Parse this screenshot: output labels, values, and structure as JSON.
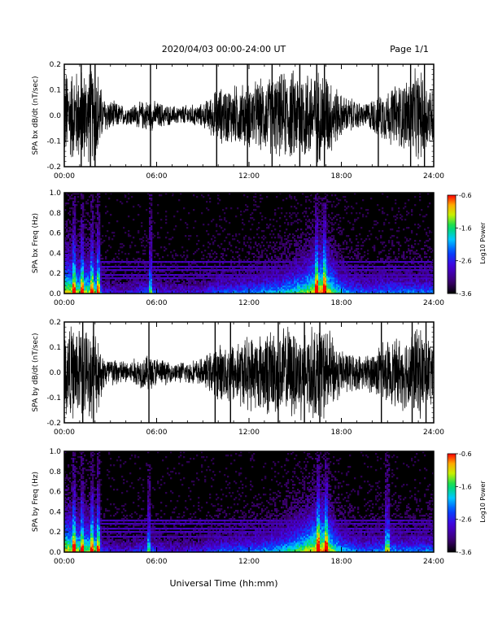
{
  "header": {
    "title": "2020/04/03  00:00-24:00 UT",
    "page": "Page 1/1"
  },
  "xlabel": "Universal Time (hh:mm)",
  "colors": {
    "line": "#000000",
    "background": "#ffffff",
    "spectrogram_background": "#000000"
  },
  "chart_data": [
    {
      "type": "line",
      "ylabel": "SPA bx dB/dt (nT/sec)",
      "x_unit": "hours UT",
      "xlim": [
        0,
        24
      ],
      "ylim": [
        -0.2,
        0.2
      ],
      "x_ticks": [
        "00:00",
        "06:00",
        "12:00",
        "18:00",
        "24:00"
      ],
      "y_ticks": [
        "0.2",
        "0.1",
        "0.0",
        "-0.1",
        "-0.2"
      ],
      "envelope": [
        {
          "x": 0.0,
          "y": 0.2
        },
        {
          "x": 1.0,
          "y": 0.2
        },
        {
          "x": 2.2,
          "y": 0.2
        },
        {
          "x": 2.5,
          "y": 0.08
        },
        {
          "x": 4.0,
          "y": 0.04
        },
        {
          "x": 5.5,
          "y": 0.07
        },
        {
          "x": 7.0,
          "y": 0.04
        },
        {
          "x": 9.0,
          "y": 0.05
        },
        {
          "x": 10.0,
          "y": 0.12
        },
        {
          "x": 12.0,
          "y": 0.14
        },
        {
          "x": 14.0,
          "y": 0.18
        },
        {
          "x": 15.0,
          "y": 0.2
        },
        {
          "x": 17.0,
          "y": 0.2
        },
        {
          "x": 18.0,
          "y": 0.09
        },
        {
          "x": 19.5,
          "y": 0.05
        },
        {
          "x": 20.5,
          "y": 0.1
        },
        {
          "x": 22.0,
          "y": 0.15
        },
        {
          "x": 23.0,
          "y": 0.2
        },
        {
          "x": 24.0,
          "y": 0.12
        }
      ],
      "spikes": [
        1.1,
        1.7,
        2.0,
        5.6,
        9.9,
        11.9,
        13.5,
        15.3,
        16.4,
        16.9,
        20.4,
        22.5,
        23.4
      ]
    },
    {
      "type": "heatmap",
      "ylabel": "SPA bx Freq (Hz)",
      "x_unit": "hours UT",
      "xlim": [
        0,
        24
      ],
      "ylim": [
        0.0,
        1.0
      ],
      "x_ticks": [
        "00:00",
        "06:00",
        "12:00",
        "18:00",
        "24:00"
      ],
      "y_ticks": [
        "1.0",
        "0.8",
        "0.6",
        "0.4",
        "0.2",
        "0.0"
      ],
      "colorbar": {
        "label": "Log10 Power",
        "range": [
          -3.6,
          -0.6
        ],
        "ticks": [
          "-0.6",
          "-1.6",
          "-2.6",
          "-3.6"
        ]
      },
      "activity": [
        {
          "x": 0.0,
          "a": 0.9
        },
        {
          "x": 1.0,
          "a": 0.8
        },
        {
          "x": 2.2,
          "a": 0.8
        },
        {
          "x": 2.5,
          "a": 0.35
        },
        {
          "x": 4.0,
          "a": 0.3
        },
        {
          "x": 5.5,
          "a": 0.45
        },
        {
          "x": 7.0,
          "a": 0.3
        },
        {
          "x": 9.0,
          "a": 0.35
        },
        {
          "x": 10.0,
          "a": 0.45
        },
        {
          "x": 12.0,
          "a": 0.5
        },
        {
          "x": 14.0,
          "a": 0.6
        },
        {
          "x": 15.5,
          "a": 0.75
        },
        {
          "x": 16.8,
          "a": 1.0
        },
        {
          "x": 18.0,
          "a": 0.6
        },
        {
          "x": 19.5,
          "a": 0.45
        },
        {
          "x": 20.5,
          "a": 0.5
        },
        {
          "x": 22.0,
          "a": 0.5
        },
        {
          "x": 24.0,
          "a": 0.5
        }
      ],
      "bands": [
        0.31,
        0.27,
        0.23,
        0.18,
        0.15
      ],
      "bursts": [
        0.6,
        1.2,
        1.8,
        2.2,
        5.6,
        16.4,
        16.9
      ]
    },
    {
      "type": "line",
      "ylabel": "SPA by dB/dt (nT/sec)",
      "x_unit": "hours UT",
      "xlim": [
        0,
        24
      ],
      "ylim": [
        -0.2,
        0.2
      ],
      "x_ticks": [
        "00:00",
        "06:00",
        "12:00",
        "18:00",
        "24:00"
      ],
      "y_ticks": [
        "0.2",
        "0.1",
        "0.0",
        "-0.1",
        "-0.2"
      ],
      "envelope": [
        {
          "x": 0.0,
          "y": 0.2
        },
        {
          "x": 1.0,
          "y": 0.2
        },
        {
          "x": 2.2,
          "y": 0.18
        },
        {
          "x": 2.5,
          "y": 0.08
        },
        {
          "x": 4.0,
          "y": 0.05
        },
        {
          "x": 5.5,
          "y": 0.08
        },
        {
          "x": 7.0,
          "y": 0.04
        },
        {
          "x": 9.0,
          "y": 0.06
        },
        {
          "x": 10.0,
          "y": 0.12
        },
        {
          "x": 12.0,
          "y": 0.16
        },
        {
          "x": 14.0,
          "y": 0.2
        },
        {
          "x": 15.5,
          "y": 0.2
        },
        {
          "x": 17.0,
          "y": 0.2
        },
        {
          "x": 18.0,
          "y": 0.1
        },
        {
          "x": 19.5,
          "y": 0.07
        },
        {
          "x": 20.5,
          "y": 0.12
        },
        {
          "x": 22.0,
          "y": 0.16
        },
        {
          "x": 23.0,
          "y": 0.2
        },
        {
          "x": 24.0,
          "y": 0.14
        }
      ],
      "spikes": [
        1.2,
        1.9,
        5.5,
        9.8,
        10.8,
        13.9,
        15.6,
        16.6,
        20.6,
        22.6,
        23.5
      ]
    },
    {
      "type": "heatmap",
      "ylabel": "SPA by Freq (Hz)",
      "x_unit": "hours UT",
      "xlim": [
        0,
        24
      ],
      "ylim": [
        0.0,
        1.0
      ],
      "x_ticks": [
        "00:00",
        "06:00",
        "12:00",
        "18:00",
        "24:00"
      ],
      "y_ticks": [
        "1.0",
        "0.8",
        "0.6",
        "0.4",
        "0.2",
        "0.0"
      ],
      "colorbar": {
        "label": "Log10 Power",
        "range": [
          -3.6,
          -0.6
        ],
        "ticks": [
          "-0.6",
          "-1.6",
          "-2.6",
          "-3.6"
        ]
      },
      "activity": [
        {
          "x": 0.0,
          "a": 0.9
        },
        {
          "x": 1.0,
          "a": 0.8
        },
        {
          "x": 2.2,
          "a": 0.8
        },
        {
          "x": 2.5,
          "a": 0.35
        },
        {
          "x": 4.0,
          "a": 0.3
        },
        {
          "x": 5.5,
          "a": 0.45
        },
        {
          "x": 7.0,
          "a": 0.3
        },
        {
          "x": 9.0,
          "a": 0.35
        },
        {
          "x": 10.0,
          "a": 0.45
        },
        {
          "x": 12.0,
          "a": 0.5
        },
        {
          "x": 14.0,
          "a": 0.6
        },
        {
          "x": 15.5,
          "a": 0.8
        },
        {
          "x": 16.8,
          "a": 1.0
        },
        {
          "x": 18.0,
          "a": 0.6
        },
        {
          "x": 19.5,
          "a": 0.45
        },
        {
          "x": 21.0,
          "a": 0.55
        },
        {
          "x": 22.0,
          "a": 0.5
        },
        {
          "x": 24.0,
          "a": 0.5
        }
      ],
      "bands": [
        0.32,
        0.28,
        0.24,
        0.2,
        0.16
      ],
      "bursts": [
        0.6,
        1.2,
        1.8,
        2.2,
        5.5,
        16.5,
        17.0,
        21.0
      ]
    }
  ]
}
